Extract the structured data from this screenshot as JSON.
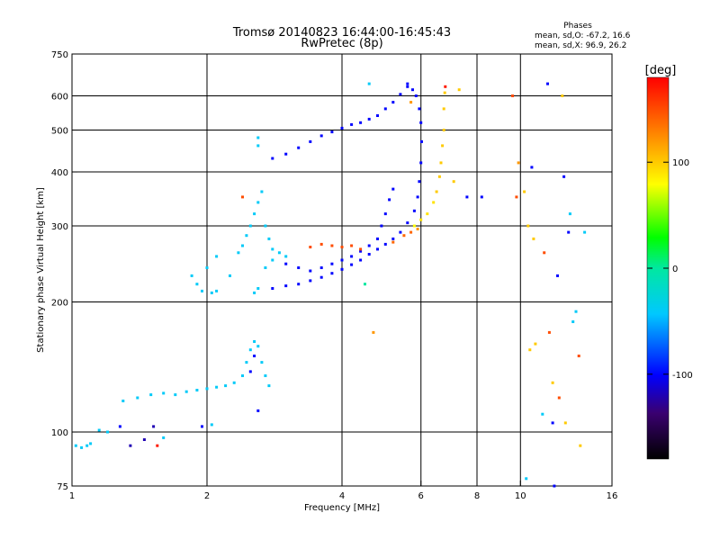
{
  "chart_data": {
    "type": "scatter",
    "title": "Tromsø 20140823 16:44:00-16:45:43",
    "subtitle": "RwPretec (8p)",
    "phases": {
      "heading": "Phases",
      "line_o": "mean, sd,O:  -67.2, 16.6",
      "line_x": "mean, sd,X:  96.9, 26.2"
    },
    "xlabel": "Frequency [MHz]",
    "ylabel": "Stationary phase Virtual Height [km]",
    "x_scale": "log",
    "y_scale": "log",
    "xlim": [
      1,
      16
    ],
    "ylim": [
      75,
      750
    ],
    "x_ticks": [
      {
        "value": 1,
        "label": "1"
      },
      {
        "value": 2,
        "label": "2"
      },
      {
        "value": 4,
        "label": "4"
      },
      {
        "value": 6,
        "label": "6"
      },
      {
        "value": 8,
        "label": "8"
      },
      {
        "value": 10,
        "label": "10"
      },
      {
        "value": 16,
        "label": "16"
      }
    ],
    "y_ticks": [
      {
        "value": 75,
        "label": "75"
      },
      {
        "value": 100,
        "label": "100"
      },
      {
        "value": 200,
        "label": "200"
      },
      {
        "value": 300,
        "label": "300"
      },
      {
        "value": 400,
        "label": "400"
      },
      {
        "value": 500,
        "label": "500"
      },
      {
        "value": 600,
        "label": "600"
      },
      {
        "value": 750,
        "label": "750"
      }
    ],
    "grid": true,
    "colorbar": {
      "label": "[deg]",
      "range": [
        -180,
        180
      ],
      "ticks": [
        {
          "value": 100,
          "label": "100"
        },
        {
          "value": 0,
          "label": "0"
        },
        {
          "value": -100,
          "label": "-100"
        }
      ]
    },
    "points": [
      [
        1.02,
        93,
        -40
      ],
      [
        1.05,
        92,
        -40
      ],
      [
        1.08,
        93,
        -40
      ],
      [
        1.1,
        94,
        -40
      ],
      [
        1.15,
        101,
        -40
      ],
      [
        1.2,
        100,
        -40
      ],
      [
        1.28,
        103,
        -100
      ],
      [
        1.35,
        93,
        -120
      ],
      [
        1.45,
        96,
        -120
      ],
      [
        1.52,
        103,
        -120
      ],
      [
        1.55,
        93,
        170
      ],
      [
        1.6,
        97,
        -40
      ],
      [
        1.95,
        103,
        -100
      ],
      [
        2.05,
        104,
        -40
      ],
      [
        1.3,
        118,
        -40
      ],
      [
        1.4,
        120,
        -40
      ],
      [
        1.5,
        122,
        -40
      ],
      [
        1.6,
        123,
        -40
      ],
      [
        1.7,
        122,
        -40
      ],
      [
        1.8,
        124,
        -40
      ],
      [
        1.9,
        125,
        -40
      ],
      [
        2.0,
        126,
        -40
      ],
      [
        2.1,
        127,
        -40
      ],
      [
        2.2,
        128,
        -40
      ],
      [
        2.3,
        130,
        -40
      ],
      [
        2.4,
        135,
        -40
      ],
      [
        2.45,
        145,
        -40
      ],
      [
        2.5,
        155,
        -40
      ],
      [
        2.55,
        162,
        -40
      ],
      [
        2.6,
        158,
        -40
      ],
      [
        2.65,
        145,
        -40
      ],
      [
        2.7,
        135,
        -40
      ],
      [
        2.75,
        128,
        -40
      ],
      [
        2.5,
        138,
        -100
      ],
      [
        2.55,
        150,
        -100
      ],
      [
        2.6,
        112,
        -100
      ],
      [
        1.85,
        230,
        -40
      ],
      [
        1.9,
        220,
        -40
      ],
      [
        1.95,
        212,
        -40
      ],
      [
        2.05,
        210,
        -40
      ],
      [
        2.1,
        212,
        -40
      ],
      [
        2.0,
        240,
        -40
      ],
      [
        2.1,
        255,
        -40
      ],
      [
        2.25,
        230,
        -40
      ],
      [
        2.35,
        260,
        -40
      ],
      [
        2.4,
        270,
        -40
      ],
      [
        2.45,
        285,
        -40
      ],
      [
        2.5,
        300,
        -40
      ],
      [
        2.55,
        320,
        -40
      ],
      [
        2.6,
        340,
        -40
      ],
      [
        2.65,
        360,
        -40
      ],
      [
        2.7,
        300,
        -40
      ],
      [
        2.75,
        280,
        -40
      ],
      [
        2.8,
        265,
        -40
      ],
      [
        2.9,
        260,
        -40
      ],
      [
        3.0,
        255,
        -40
      ],
      [
        2.55,
        210,
        -40
      ],
      [
        2.6,
        215,
        -40
      ],
      [
        2.7,
        240,
        -40
      ],
      [
        2.8,
        250,
        -40
      ],
      [
        2.4,
        350,
        150
      ],
      [
        2.8,
        215,
        -100
      ],
      [
        3.0,
        218,
        -100
      ],
      [
        3.2,
        220,
        -100
      ],
      [
        3.4,
        224,
        -100
      ],
      [
        3.6,
        228,
        -100
      ],
      [
        3.8,
        233,
        -100
      ],
      [
        4.0,
        238,
        -100
      ],
      [
        4.2,
        244,
        -100
      ],
      [
        4.4,
        250,
        -100
      ],
      [
        4.6,
        258,
        -100
      ],
      [
        4.8,
        265,
        -100
      ],
      [
        5.0,
        272,
        -100
      ],
      [
        5.2,
        280,
        -100
      ],
      [
        5.4,
        290,
        -100
      ],
      [
        5.6,
        305,
        -100
      ],
      [
        5.8,
        325,
        -100
      ],
      [
        5.9,
        350,
        -100
      ],
      [
        5.95,
        380,
        -100
      ],
      [
        6.0,
        420,
        -100
      ],
      [
        6.02,
        470,
        -100
      ],
      [
        6.0,
        520,
        -100
      ],
      [
        5.95,
        560,
        -100
      ],
      [
        5.85,
        600,
        -100
      ],
      [
        5.75,
        620,
        -100
      ],
      [
        5.6,
        640,
        -100
      ],
      [
        3.0,
        245,
        -100
      ],
      [
        3.2,
        240,
        -100
      ],
      [
        3.4,
        236,
        -100
      ],
      [
        3.6,
        240,
        -100
      ],
      [
        3.8,
        245,
        -100
      ],
      [
        4.0,
        250,
        -100
      ],
      [
        4.2,
        255,
        -100
      ],
      [
        4.4,
        262,
        -100
      ],
      [
        4.6,
        270,
        -100
      ],
      [
        4.8,
        280,
        -100
      ],
      [
        4.9,
        300,
        -100
      ],
      [
        5.0,
        320,
        -100
      ],
      [
        5.1,
        345,
        -100
      ],
      [
        5.2,
        365,
        -100
      ],
      [
        3.4,
        268,
        150
      ],
      [
        3.6,
        272,
        150
      ],
      [
        3.8,
        270,
        150
      ],
      [
        4.0,
        268,
        150
      ],
      [
        4.2,
        270,
        150
      ],
      [
        4.4,
        265,
        150
      ],
      [
        5.2,
        275,
        140
      ],
      [
        5.5,
        285,
        140
      ],
      [
        5.7,
        290,
        140
      ],
      [
        5.9,
        295,
        120
      ],
      [
        5.8,
        300,
        80
      ],
      [
        6.0,
        310,
        90
      ],
      [
        6.2,
        320,
        90
      ],
      [
        6.4,
        340,
        90
      ],
      [
        6.5,
        360,
        100
      ],
      [
        6.6,
        390,
        100
      ],
      [
        6.65,
        420,
        100
      ],
      [
        6.7,
        460,
        100
      ],
      [
        6.75,
        500,
        100
      ],
      [
        6.75,
        560,
        100
      ],
      [
        6.78,
        610,
        100
      ],
      [
        6.8,
        630,
        170
      ],
      [
        7.3,
        620,
        100
      ],
      [
        2.8,
        430,
        -100
      ],
      [
        3.0,
        440,
        -100
      ],
      [
        3.2,
        455,
        -100
      ],
      [
        3.4,
        470,
        -100
      ],
      [
        3.6,
        485,
        -100
      ],
      [
        3.8,
        495,
        -100
      ],
      [
        4.0,
        505,
        -100
      ],
      [
        4.2,
        515,
        -100
      ],
      [
        4.4,
        520,
        -100
      ],
      [
        4.6,
        530,
        -100
      ],
      [
        4.8,
        540,
        -100
      ],
      [
        5.0,
        560,
        -100
      ],
      [
        5.2,
        580,
        -100
      ],
      [
        5.4,
        605,
        -100
      ],
      [
        5.6,
        630,
        -100
      ],
      [
        2.6,
        460,
        -40
      ],
      [
        2.6,
        480,
        -40
      ],
      [
        4.6,
        640,
        -40
      ],
      [
        4.7,
        170,
        120
      ],
      [
        4.5,
        220,
        0
      ],
      [
        5.7,
        580,
        120
      ],
      [
        7.1,
        380,
        100
      ],
      [
        7.6,
        350,
        -100
      ],
      [
        8.2,
        350,
        -100
      ],
      [
        9.6,
        600,
        150
      ],
      [
        9.8,
        350,
        150
      ],
      [
        9.9,
        420,
        120
      ],
      [
        10.2,
        360,
        100
      ],
      [
        10.4,
        300,
        100
      ],
      [
        10.6,
        410,
        -100
      ],
      [
        10.7,
        280,
        100
      ],
      [
        11.3,
        260,
        150
      ],
      [
        11.8,
        130,
        100
      ],
      [
        10.8,
        160,
        100
      ],
      [
        11.5,
        640,
        -100
      ],
      [
        12.4,
        600,
        100
      ],
      [
        12.5,
        390,
        -100
      ],
      [
        12.8,
        290,
        -100
      ],
      [
        12.1,
        230,
        -100
      ],
      [
        12.9,
        320,
        -40
      ],
      [
        13.1,
        180,
        -40
      ],
      [
        12.2,
        120,
        150
      ],
      [
        11.2,
        110,
        -40
      ],
      [
        11.8,
        105,
        -100
      ],
      [
        12.6,
        105,
        100
      ],
      [
        10.3,
        78,
        -40
      ],
      [
        11.9,
        75,
        -100
      ],
      [
        13.6,
        93,
        100
      ],
      [
        13.9,
        290,
        -40
      ],
      [
        10.5,
        155,
        100
      ],
      [
        11.6,
        170,
        150
      ],
      [
        13.3,
        190,
        -40
      ],
      [
        13.5,
        150,
        150
      ]
    ]
  }
}
